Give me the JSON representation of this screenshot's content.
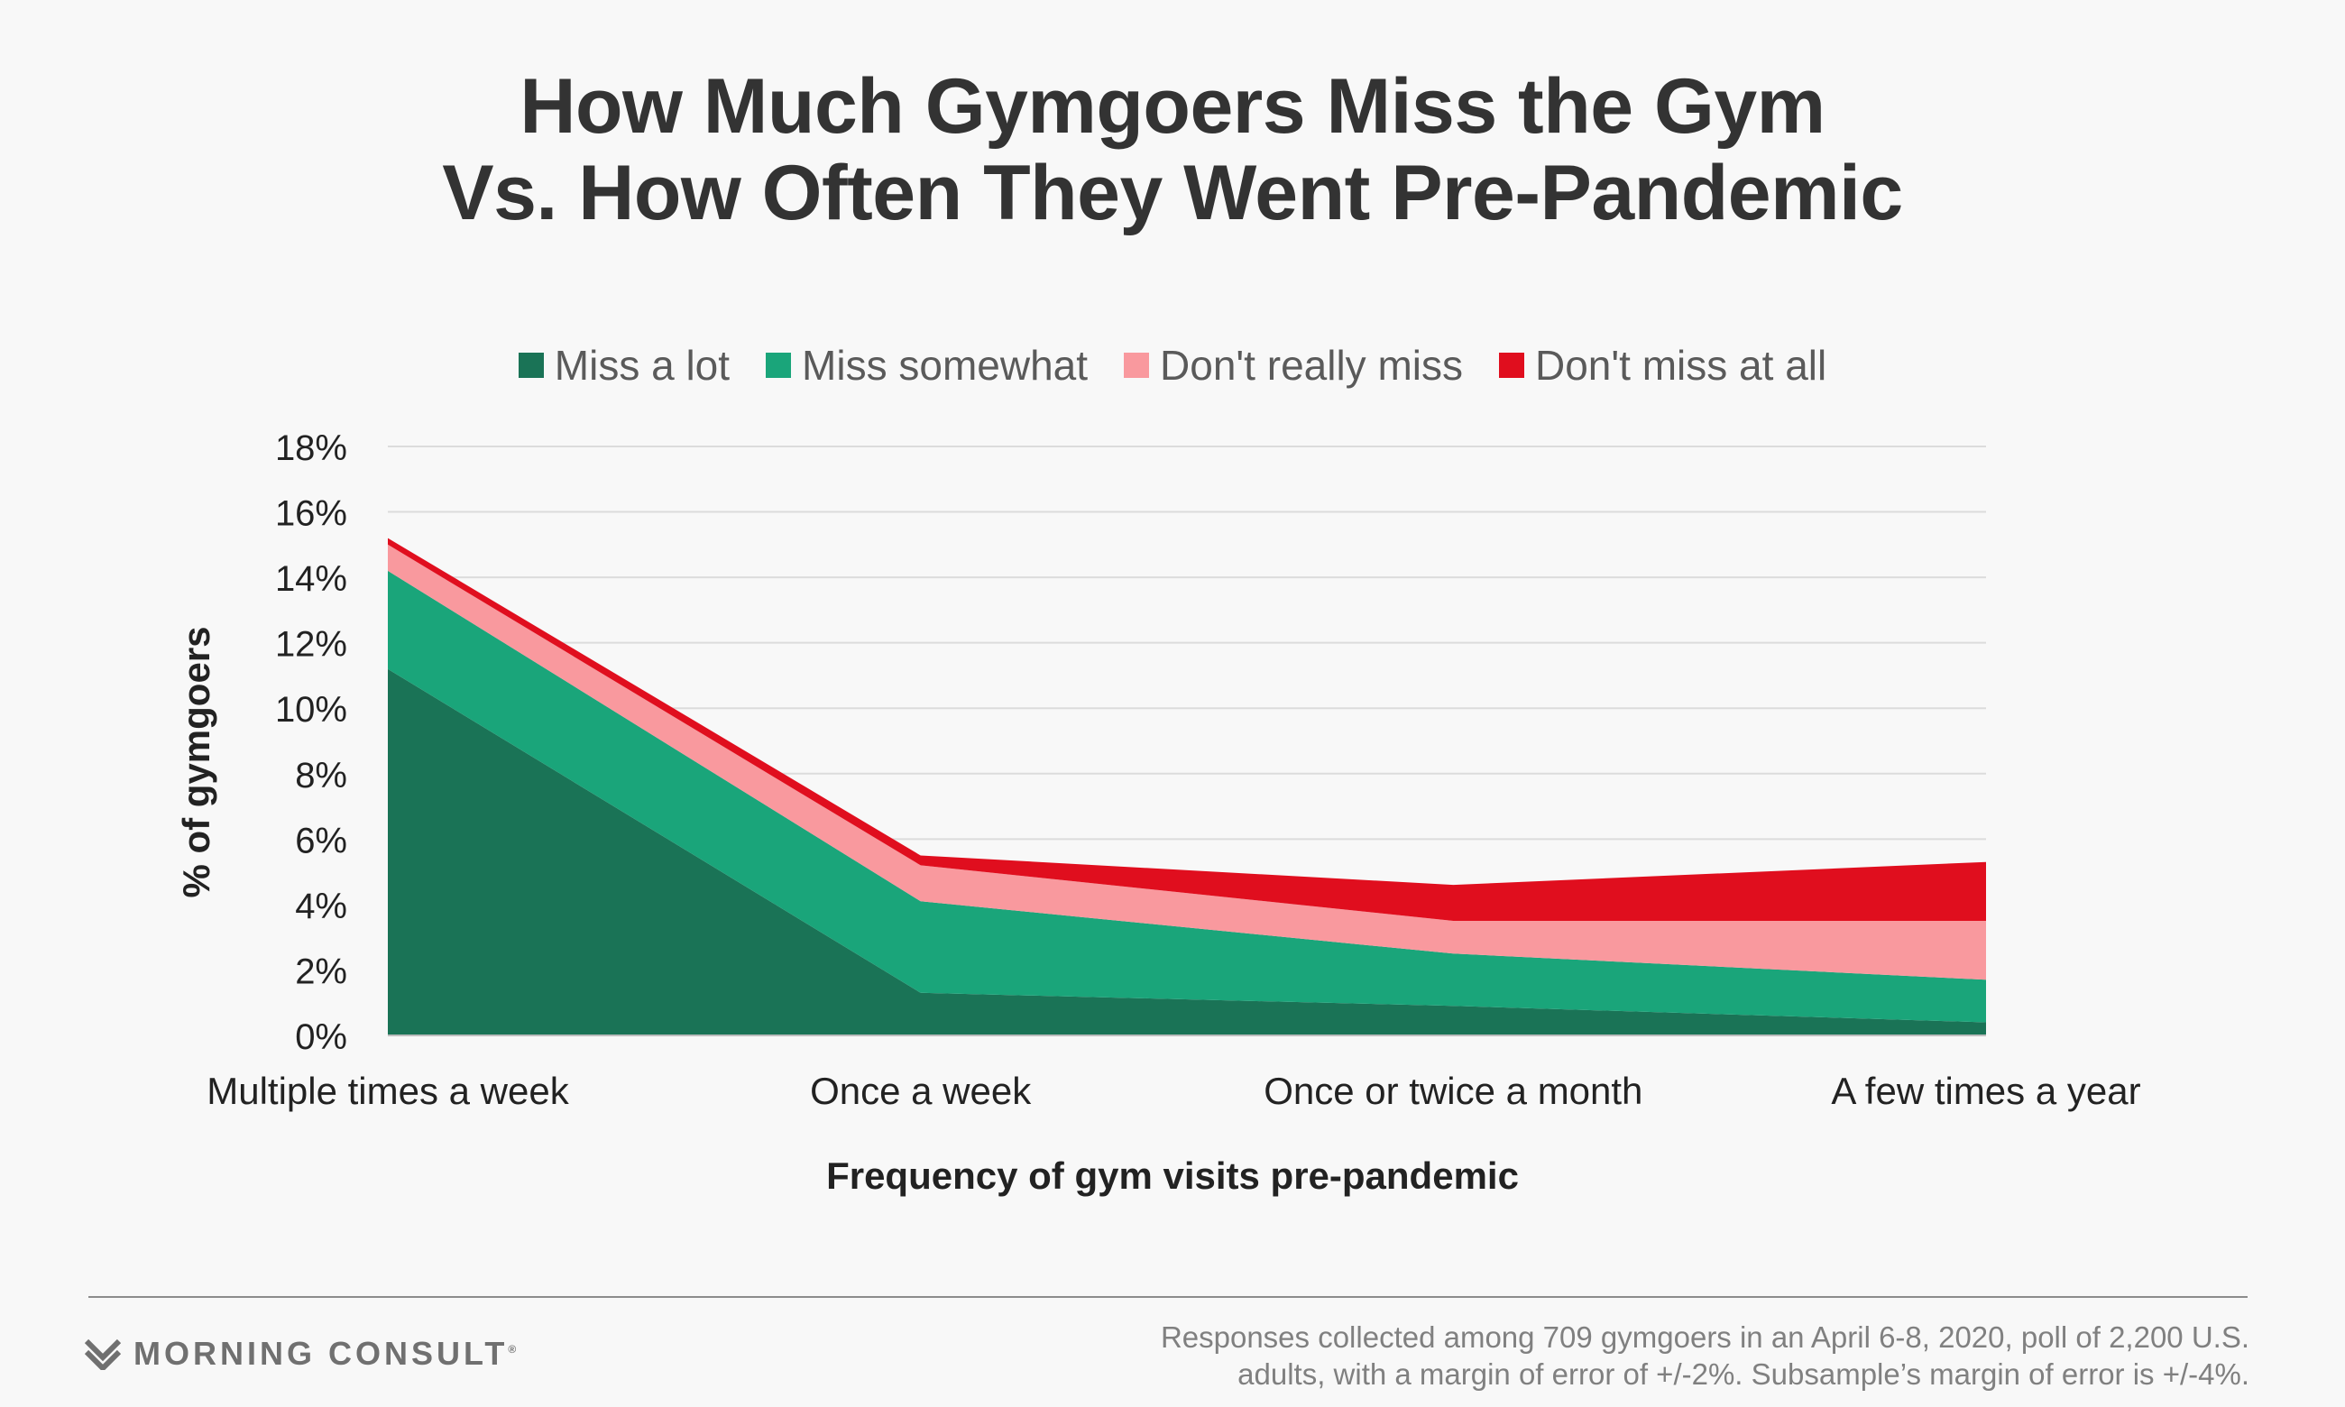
{
  "title_lines": [
    "How Much Gymgoers Miss the Gym",
    "Vs. How Often They Went Pre-Pandemic"
  ],
  "footer": {
    "brand": "MORNING CONSULT",
    "note_lines": [
      "Responses collected among 709 gymgoers in an April 6-8, 2020, poll of 2,200 U.S.",
      "adults, with a margin of error of +/-2%. Subsample’s margin of error is +/-4%."
    ]
  },
  "chart_data": {
    "type": "area",
    "stacked": true,
    "categories": [
      "Multiple times a week",
      "Once a week",
      "Once or twice a month",
      "A few times a year"
    ],
    "series": [
      {
        "name": "Miss a lot",
        "color": "#1a7356",
        "values": [
          11.2,
          1.3,
          0.9,
          0.4
        ]
      },
      {
        "name": "Miss somewhat",
        "color": "#1aa57a",
        "values": [
          3.0,
          2.8,
          1.6,
          1.3
        ]
      },
      {
        "name": "Don't really miss",
        "color": "#f9999e",
        "values": [
          0.8,
          1.1,
          1.0,
          1.8
        ]
      },
      {
        "name": "Don't miss at all",
        "color": "#e00e1e",
        "values": [
          0.2,
          0.3,
          1.1,
          1.8
        ]
      }
    ],
    "xlabel": "Frequency of gym visits pre-pandemic",
    "ylabel": "% of gymgoers",
    "ylim": [
      0,
      18
    ],
    "yticks": [
      "0%",
      "2%",
      "4%",
      "6%",
      "8%",
      "10%",
      "12%",
      "14%",
      "16%",
      "18%"
    ],
    "grid": true,
    "legend_position": "top"
  }
}
